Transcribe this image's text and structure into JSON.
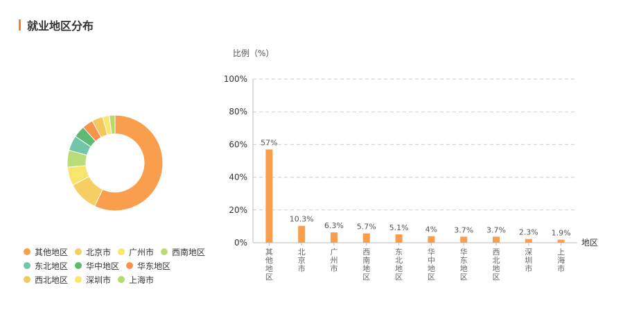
{
  "header": {
    "title": "就业地区分布"
  },
  "chart_data": [
    {
      "type": "pie",
      "variant": "donut",
      "labels": [
        "其他地区",
        "北京市",
        "广州市",
        "西南地区",
        "东北地区",
        "华中地区",
        "华东地区",
        "西北地区",
        "深圳市",
        "上海市"
      ],
      "values": [
        57,
        10.3,
        6.3,
        5.7,
        5.1,
        4,
        3.7,
        3.7,
        2.3,
        1.9
      ],
      "colors": [
        "#f89e4c",
        "#f5cf64",
        "#f9e46e",
        "#b9dc78",
        "#71c6aa",
        "#5fb873",
        "#f7934b",
        "#f5c55e",
        "#f9e66e",
        "#b4d96e"
      ],
      "legend_position": "bottom-left"
    },
    {
      "type": "bar",
      "categories": [
        "其他地区",
        "北京市",
        "广州市",
        "西南地区",
        "东北地区",
        "华中地区",
        "华东地区",
        "西北地区",
        "深圳市",
        "上海市"
      ],
      "values": [
        57,
        10.3,
        6.3,
        5.7,
        5.1,
        4,
        3.7,
        3.7,
        2.3,
        1.9
      ],
      "data_labels": [
        "57%",
        "10.3%",
        "6.3%",
        "5.7%",
        "5.1%",
        "4%",
        "3.7%",
        "3.7%",
        "2.3%",
        "1.9%"
      ],
      "ylabel": "比例（%）",
      "xlabel": "地区",
      "ylim": [
        0,
        100
      ],
      "yticks": [
        "0%",
        "20%",
        "40%",
        "60%",
        "80%",
        "100%"
      ],
      "grid": true,
      "bar_color": "#f89e4c"
    }
  ]
}
